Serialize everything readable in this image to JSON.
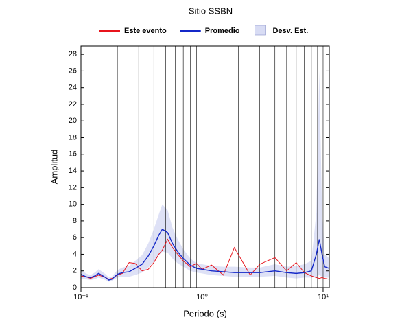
{
  "chart_data": {
    "type": "line",
    "title": "Sitio SSBN",
    "x_label": "Periodo (s)",
    "y_label": "Amplitud",
    "xscale": "log",
    "xlim": [
      0.1,
      11.25
    ],
    "ylim": [
      0,
      29
    ],
    "xticks": [
      {
        "value": 0.1,
        "label": "10⁻¹"
      },
      {
        "value": 1,
        "label": "10⁰"
      },
      {
        "value": 10,
        "label": "10¹"
      }
    ],
    "minor_xticks": [
      0.2,
      0.3,
      0.4,
      0.5,
      0.6,
      0.7,
      0.8,
      0.9,
      2,
      3,
      4,
      5,
      6,
      7,
      8,
      9
    ],
    "yticks": [
      0,
      2,
      4,
      6,
      8,
      10,
      12,
      14,
      16,
      18,
      20,
      22,
      24,
      26,
      28
    ],
    "grid": true,
    "x": [
      0.1,
      0.11,
      0.12,
      0.13,
      0.14,
      0.16,
      0.17,
      0.18,
      0.2,
      0.22,
      0.25,
      0.28,
      0.32,
      0.36,
      0.4,
      0.44,
      0.47,
      0.52,
      0.57,
      0.63,
      0.7,
      0.8,
      0.9,
      1.0,
      1.2,
      1.5,
      1.85,
      2.5,
      3,
      4,
      5,
      6,
      7,
      8,
      8.8,
      9.3,
      9.8,
      10.3,
      11.25
    ],
    "series": [
      {
        "name": "Este evento",
        "color": "#e8141c",
        "values": [
          1.4,
          1.3,
          1.1,
          1.3,
          1.5,
          1.2,
          1.0,
          1.1,
          1.5,
          1.7,
          3.0,
          2.9,
          2.0,
          2.2,
          3.0,
          4.0,
          4.5,
          5.8,
          4.8,
          4.0,
          3.2,
          2.5,
          2.9,
          2.2,
          2.7,
          1.5,
          4.8,
          1.5,
          2.8,
          3.6,
          2.0,
          3.0,
          1.8,
          1.4,
          1.2,
          1.1,
          1.2,
          1.1,
          1.0
        ]
      },
      {
        "name": "Promedio",
        "color": "#1428c8",
        "values": [
          1.6,
          1.3,
          1.2,
          1.4,
          1.7,
          1.2,
          0.9,
          1.0,
          1.6,
          1.8,
          1.9,
          2.3,
          2.8,
          3.8,
          5.0,
          6.3,
          7.0,
          6.6,
          5.3,
          4.3,
          3.5,
          2.7,
          2.3,
          2.2,
          2.0,
          1.9,
          1.8,
          1.8,
          1.8,
          2.0,
          1.8,
          1.7,
          1.8,
          2.0,
          4.0,
          5.8,
          4.0,
          2.5,
          2.3
        ]
      },
      {
        "name": "Desv. Est.",
        "color": "#d8dcf4",
        "lower": [
          1.1,
          1.0,
          0.9,
          1.0,
          1.2,
          0.9,
          0.7,
          0.8,
          1.2,
          1.3,
          1.3,
          1.5,
          1.8,
          2.4,
          3.1,
          3.9,
          4.3,
          4.2,
          3.5,
          2.9,
          2.5,
          2.0,
          1.8,
          1.7,
          1.5,
          1.4,
          1.3,
          1.3,
          1.3,
          1.4,
          1.2,
          1.1,
          1.2,
          1.2,
          1.3,
          1.5,
          1.3,
          1.2,
          1.2
        ],
        "upper": [
          2.1,
          1.7,
          1.5,
          1.8,
          2.2,
          1.6,
          1.2,
          1.3,
          2.1,
          2.4,
          2.6,
          3.2,
          3.9,
          5.3,
          7.0,
          8.8,
          10.0,
          9.3,
          7.2,
          5.8,
          4.6,
          3.5,
          2.9,
          2.8,
          2.6,
          2.5,
          2.5,
          2.4,
          2.4,
          2.8,
          2.5,
          2.6,
          2.8,
          3.2,
          9.0,
          26.0,
          9.0,
          4.0,
          3.5
        ]
      }
    ]
  }
}
